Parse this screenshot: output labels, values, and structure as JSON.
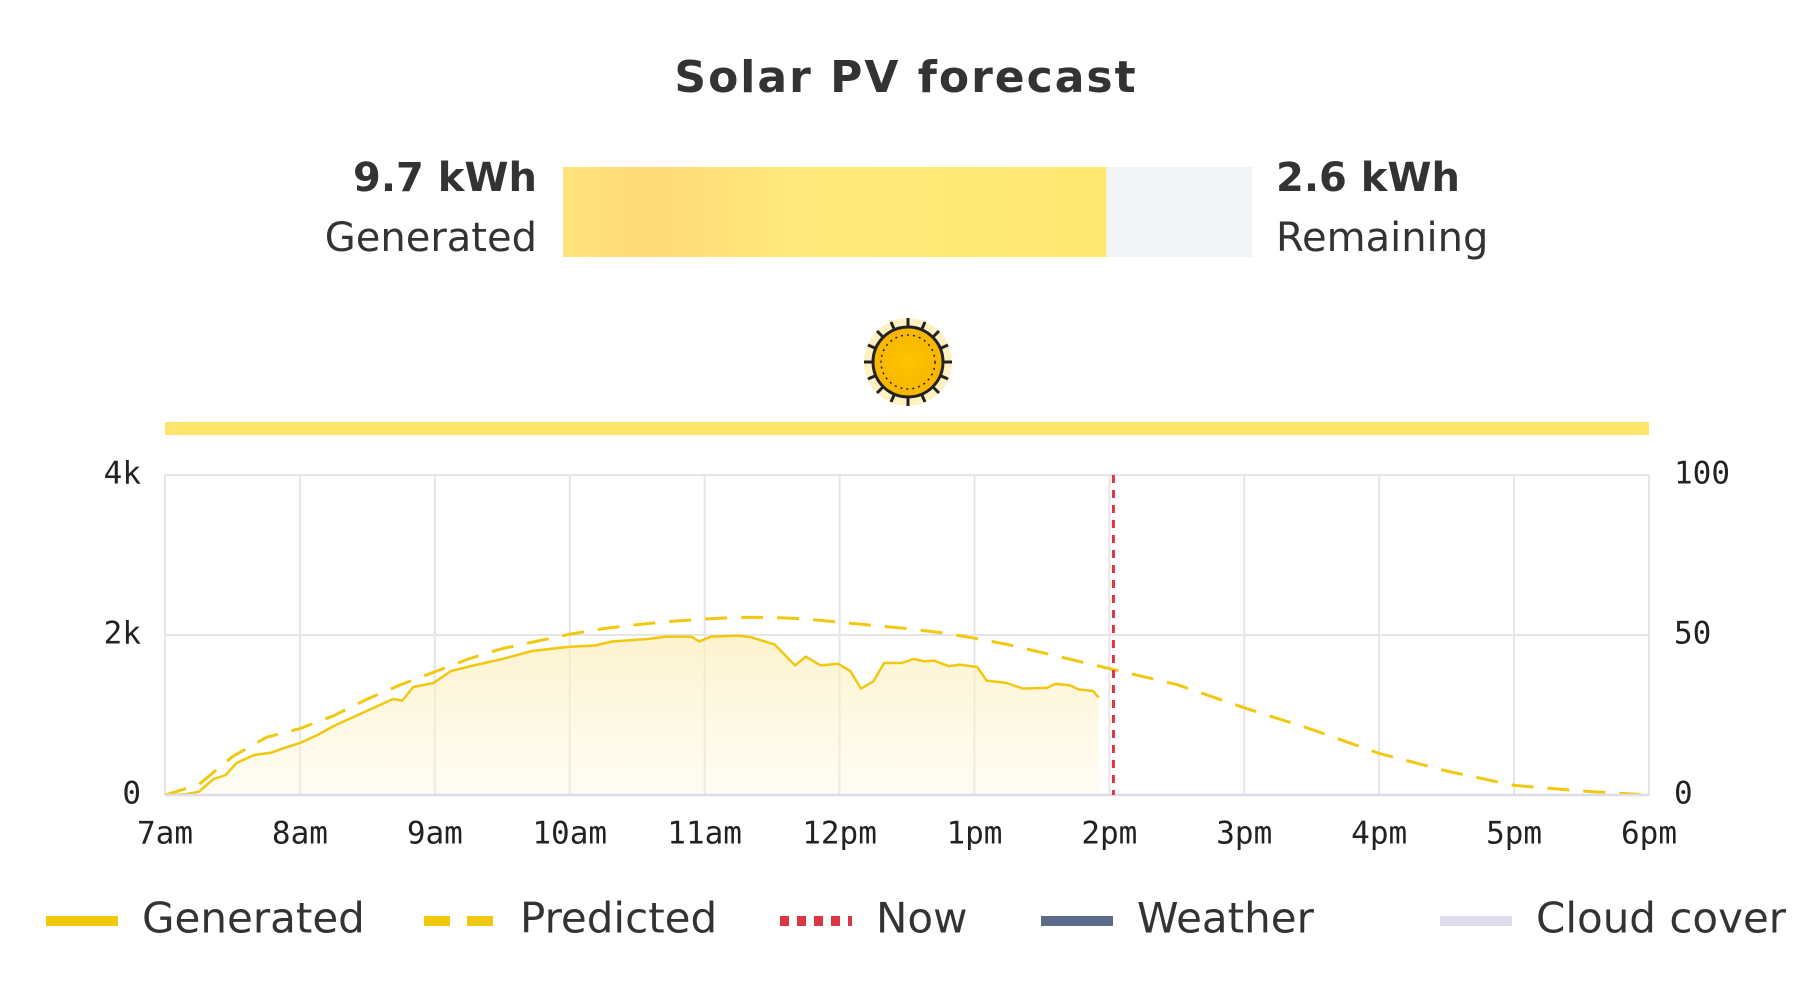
{
  "chart_data": {
    "type": "line",
    "title": "Solar PV forecast",
    "summary": {
      "generated": {
        "value": 9.7,
        "label": "9.7 kWh",
        "caption": "Generated"
      },
      "remaining": {
        "value": 2.6,
        "label": "2.6 kWh",
        "caption": "Remaining"
      }
    },
    "xlim": [
      7,
      18
    ],
    "xticks": [
      {
        "value": 7,
        "label": "7am"
      },
      {
        "value": 8,
        "label": "8am"
      },
      {
        "value": 9,
        "label": "9am"
      },
      {
        "value": 10,
        "label": "10am"
      },
      {
        "value": 11,
        "label": "11am"
      },
      {
        "value": 12,
        "label": "12pm"
      },
      {
        "value": 13,
        "label": "1pm"
      },
      {
        "value": 14,
        "label": "2pm"
      },
      {
        "value": 15,
        "label": "3pm"
      },
      {
        "value": 16,
        "label": "4pm"
      },
      {
        "value": 17,
        "label": "5pm"
      },
      {
        "value": 18,
        "label": "6pm"
      }
    ],
    "ylim": [
      0,
      4000
    ],
    "yticks": [
      0,
      {
        "value": 2000,
        "label": "2k"
      },
      {
        "value": 4000,
        "label": "4k"
      }
    ],
    "y2lim": [
      0,
      100
    ],
    "y2ticks": [
      0,
      50,
      100
    ],
    "grid": true,
    "now": {
      "name": "Now",
      "color": "#dc3545",
      "x": 14.03
    },
    "series": [
      {
        "name": "Generated",
        "color": "#f2c80f",
        "style": "solid",
        "fill": true,
        "x": [
          7.0,
          7.15,
          7.25,
          7.36,
          7.45,
          7.53,
          7.66,
          7.79,
          7.87,
          8.0,
          8.13,
          8.26,
          8.43,
          8.69,
          8.76,
          8.84,
          8.99,
          9.12,
          9.29,
          9.5,
          9.72,
          9.98,
          10.19,
          10.32,
          10.58,
          10.71,
          10.9,
          10.96,
          11.05,
          11.26,
          11.35,
          11.52,
          11.67,
          11.75,
          11.86,
          11.99,
          12.08,
          12.16,
          12.25,
          12.33,
          12.46,
          12.55,
          12.63,
          12.7,
          12.81,
          12.89,
          13.02,
          13.09,
          13.24,
          13.36,
          13.54,
          13.6,
          13.71,
          13.77,
          13.88,
          13.92
        ],
        "values": [
          0,
          10,
          40,
          200,
          250,
          400,
          500,
          530,
          580,
          650,
          750,
          870,
          1000,
          1200,
          1180,
          1350,
          1400,
          1550,
          1620,
          1700,
          1800,
          1850,
          1870,
          1920,
          1950,
          1980,
          1980,
          1920,
          1980,
          1990,
          1970,
          1880,
          1620,
          1730,
          1620,
          1640,
          1550,
          1330,
          1420,
          1650,
          1650,
          1700,
          1670,
          1680,
          1610,
          1630,
          1600,
          1430,
          1400,
          1330,
          1340,
          1390,
          1370,
          1320,
          1300,
          1220
        ]
      },
      {
        "name": "Predicted",
        "color": "#f2c80f",
        "style": "dashed",
        "x": [
          7,
          7.25,
          7.5,
          7.75,
          8,
          8.25,
          8.5,
          8.75,
          9,
          9.25,
          9.5,
          9.75,
          10,
          10.25,
          10.5,
          10.75,
          11,
          11.25,
          11.5,
          11.75,
          12,
          12.25,
          12.5,
          12.75,
          13,
          13.25,
          13.5,
          13.75,
          14,
          14.5,
          15,
          15.5,
          16,
          16.5,
          17,
          17.5,
          18
        ],
        "values": [
          0,
          130,
          480,
          720,
          830,
          990,
          1200,
          1380,
          1540,
          1700,
          1830,
          1920,
          2010,
          2080,
          2130,
          2170,
          2200,
          2220,
          2220,
          2200,
          2160,
          2120,
          2080,
          2030,
          1960,
          1880,
          1780,
          1680,
          1580,
          1380,
          1090,
          820,
          520,
          300,
          120,
          50,
          0
        ]
      },
      {
        "name": "Weather",
        "color": "#5d6b8a",
        "style": "solid",
        "x": [],
        "values": []
      },
      {
        "name": "Cloud cover",
        "color": "#dcdcea",
        "style": "solid",
        "axis": "y2",
        "x": [
          7,
          18
        ],
        "values": [
          0,
          0
        ]
      }
    ]
  }
}
